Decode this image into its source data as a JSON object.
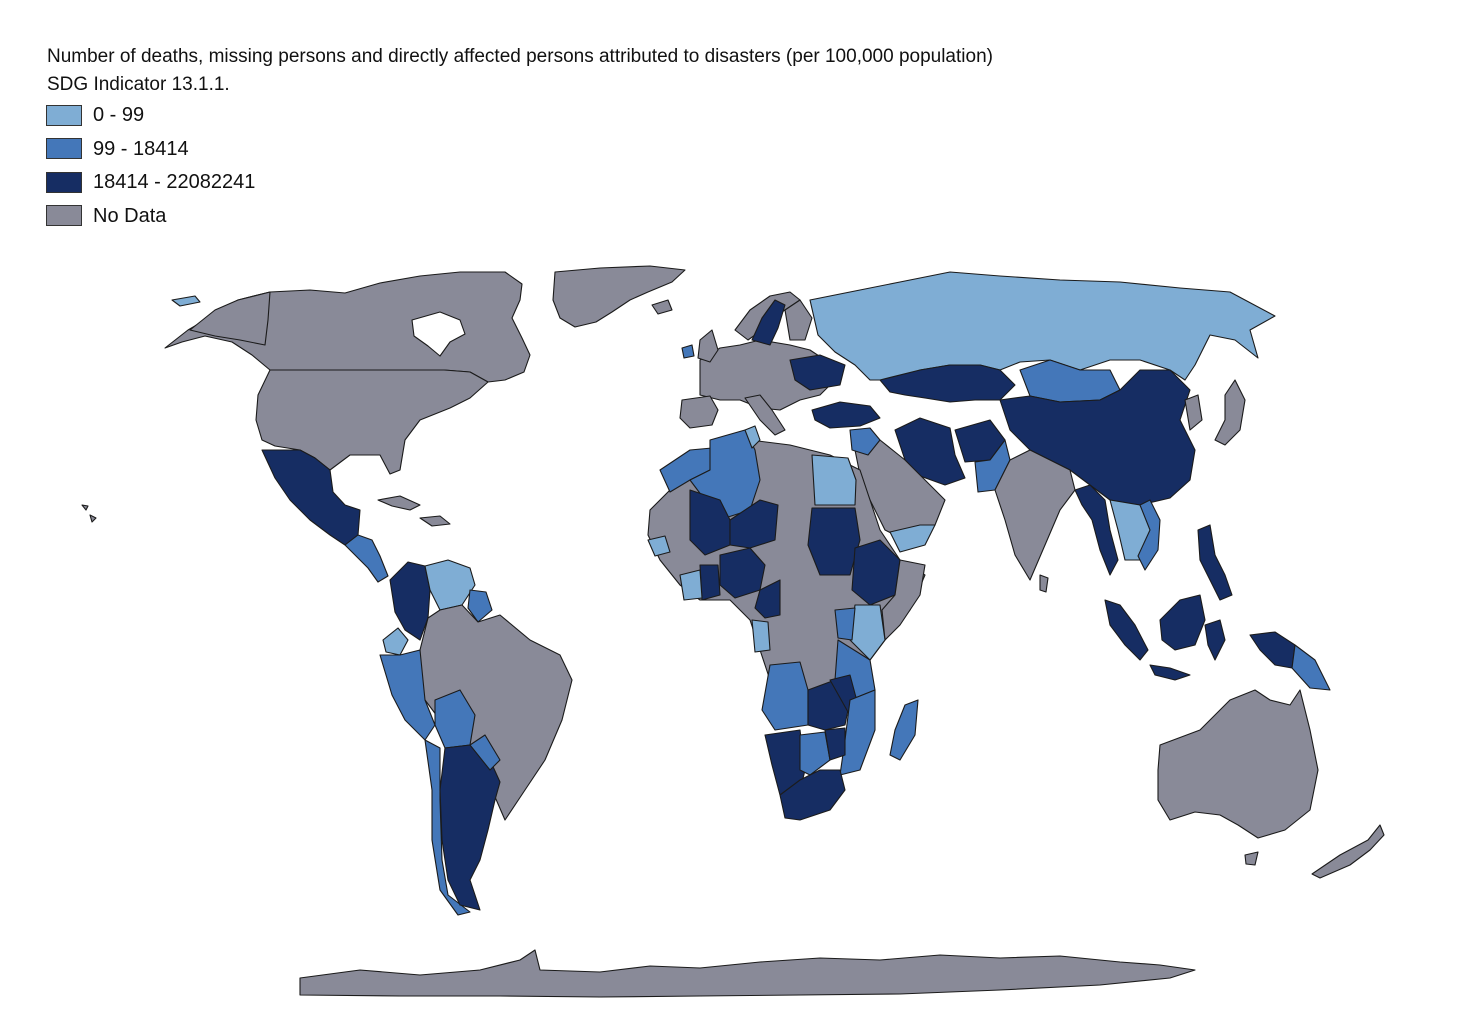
{
  "title": "Number of deaths, missing persons and directly affected persons attributed to disasters (per 100,000 population)",
  "subtitle": "SDG Indicator 13.1.1.",
  "colors": {
    "class_0_99": "#7fadd4",
    "class_99_18414": "#4477b9",
    "class_18414_max": "#162d63",
    "no_data": "#898a98",
    "border": "#1b1b1b",
    "background": "#ffffff"
  },
  "legend": [
    {
      "label": "0 - 99",
      "color": "#7fadd4"
    },
    {
      "label": "99 - 18414",
      "color": "#4477b9"
    },
    {
      "label": "18414 - 22082241",
      "color": "#162d63"
    },
    {
      "label": "No Data",
      "color": "#898a98"
    }
  ]
}
